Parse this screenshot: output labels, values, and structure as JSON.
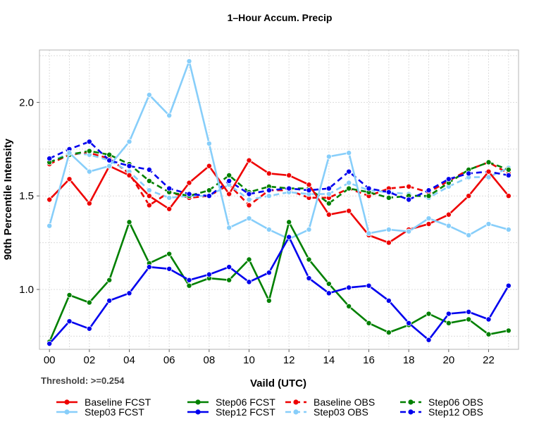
{
  "chart_data": {
    "type": "line",
    "title": "1–Hour Accum. Precip",
    "xlabel": "Vaild (UTC)",
    "ylabel": "90th Percentile Intensity",
    "threshold_label": "Threshold: >=0.254",
    "xlim": [
      -0.5,
      23.5
    ],
    "ylim": [
      0.68,
      2.28
    ],
    "x_ticks": [
      0,
      2,
      4,
      6,
      8,
      10,
      12,
      14,
      16,
      18,
      20,
      22
    ],
    "x_tick_labels": [
      "00",
      "02",
      "04",
      "06",
      "08",
      "10",
      "12",
      "14",
      "16",
      "18",
      "20",
      "22"
    ],
    "y_ticks": [
      1.0,
      1.5,
      2.0
    ],
    "y_tick_labels": [
      "1.0",
      "1.5",
      "2.0"
    ],
    "grid": true,
    "x": [
      0,
      1,
      2,
      3,
      4,
      5,
      6,
      7,
      8,
      9,
      10,
      11,
      12,
      13,
      14,
      15,
      16,
      17,
      18,
      19,
      20,
      21,
      22,
      23
    ],
    "series": [
      {
        "name": "Baseline FCST",
        "color": "#ee0000",
        "dash": "solid",
        "values": [
          1.48,
          1.59,
          1.46,
          1.66,
          1.61,
          1.5,
          1.43,
          1.57,
          1.66,
          1.51,
          1.69,
          1.62,
          1.61,
          1.56,
          1.4,
          1.42,
          1.29,
          1.25,
          1.32,
          1.35,
          1.4,
          1.5,
          1.63,
          1.5
        ]
      },
      {
        "name": "Step03 FCST",
        "color": "#87cefa",
        "dash": "solid",
        "values": [
          1.34,
          1.73,
          1.63,
          1.66,
          1.79,
          2.04,
          1.93,
          2.22,
          1.78,
          1.33,
          1.38,
          1.32,
          1.27,
          1.32,
          1.71,
          1.73,
          1.3,
          1.32,
          1.31,
          1.38,
          1.34,
          1.29,
          1.35,
          1.32
        ]
      },
      {
        "name": "Step06 FCST",
        "color": "#008000",
        "dash": "solid",
        "values": [
          0.72,
          0.97,
          0.93,
          1.05,
          1.36,
          1.14,
          1.19,
          1.02,
          1.06,
          1.05,
          1.16,
          0.94,
          1.36,
          1.16,
          1.03,
          0.91,
          0.82,
          0.77,
          0.81,
          0.87,
          0.82,
          0.84,
          0.76,
          0.78
        ]
      },
      {
        "name": "Step12 FCST",
        "color": "#0000ee",
        "dash": "solid",
        "values": [
          0.71,
          0.83,
          0.79,
          0.94,
          0.98,
          1.12,
          1.11,
          1.05,
          1.08,
          1.12,
          1.04,
          1.09,
          1.28,
          1.06,
          0.98,
          1.01,
          1.02,
          0.94,
          0.82,
          0.73,
          0.87,
          0.88,
          0.84,
          1.02
        ]
      },
      {
        "name": "Baseline OBS",
        "color": "#ee0000",
        "dash": "dashed",
        "values": [
          1.67,
          1.72,
          1.73,
          1.7,
          1.62,
          1.45,
          1.52,
          1.49,
          1.5,
          1.56,
          1.45,
          1.53,
          1.53,
          1.49,
          1.49,
          1.54,
          1.5,
          1.54,
          1.55,
          1.52,
          1.58,
          1.64,
          1.68,
          1.62
        ]
      },
      {
        "name": "Step03 OBS",
        "color": "#87cefa",
        "dash": "dashed",
        "values": [
          1.68,
          1.73,
          1.72,
          1.69,
          1.63,
          1.53,
          1.49,
          1.5,
          1.5,
          1.56,
          1.48,
          1.5,
          1.52,
          1.51,
          1.51,
          1.57,
          1.53,
          1.52,
          1.51,
          1.49,
          1.55,
          1.6,
          1.6,
          1.65
        ]
      },
      {
        "name": "Step06 OBS",
        "color": "#008000",
        "dash": "dashed",
        "values": [
          1.68,
          1.72,
          1.74,
          1.72,
          1.67,
          1.58,
          1.52,
          1.5,
          1.53,
          1.61,
          1.52,
          1.55,
          1.54,
          1.54,
          1.46,
          1.54,
          1.52,
          1.49,
          1.5,
          1.5,
          1.57,
          1.64,
          1.68,
          1.64
        ]
      },
      {
        "name": "Step12 OBS",
        "color": "#0000ee",
        "dash": "dashed",
        "values": [
          1.7,
          1.75,
          1.79,
          1.69,
          1.66,
          1.64,
          1.54,
          1.51,
          1.5,
          1.58,
          1.51,
          1.53,
          1.54,
          1.53,
          1.54,
          1.63,
          1.54,
          1.52,
          1.48,
          1.53,
          1.59,
          1.62,
          1.63,
          1.61
        ]
      }
    ],
    "legend_position": "bottom"
  }
}
